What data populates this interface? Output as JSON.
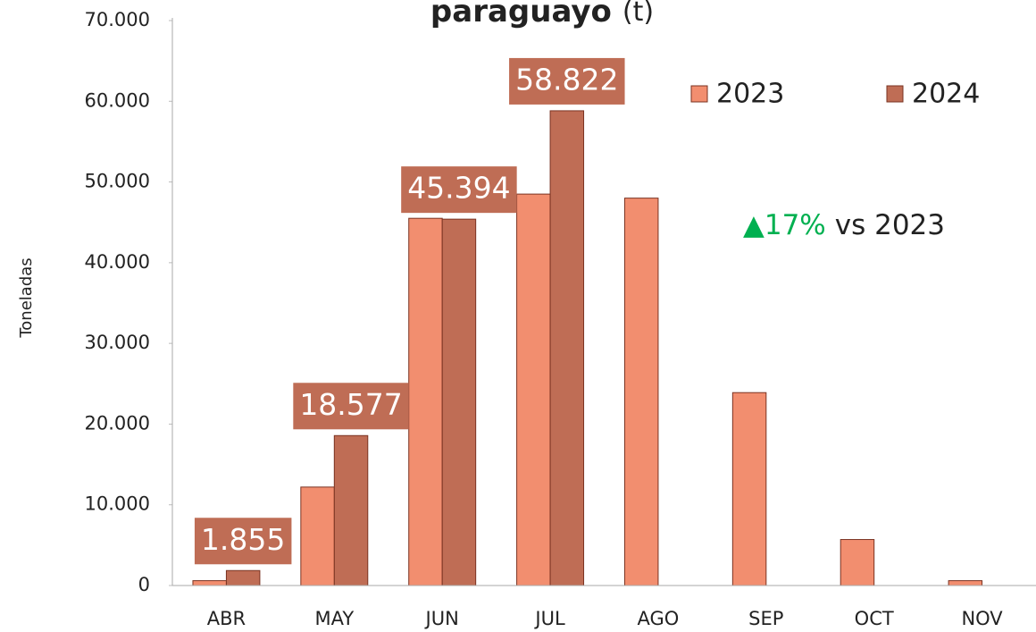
{
  "chart_data": {
    "type": "bar",
    "title": "paraguayo",
    "title_unit": "(t)",
    "ylabel": "Toneladas",
    "categories": [
      "ABR",
      "MAY",
      "JUN",
      "JUL",
      "AGO",
      "SEP",
      "OCT",
      "NOV"
    ],
    "series": [
      {
        "name": "2023",
        "color": "#f28e6f",
        "values": [
          600,
          12200,
          45500,
          48500,
          48000,
          23900,
          5700,
          600
        ]
      },
      {
        "name": "2024",
        "color": "#bf6d55",
        "values": [
          1855,
          18577,
          45394,
          58822,
          null,
          null,
          null,
          null
        ],
        "value_labels": [
          "1.855",
          "18.577",
          "45.394",
          "58.822",
          null,
          null,
          null,
          null
        ]
      }
    ],
    "ylim": [
      0,
      70000
    ],
    "yticks": [
      0,
      {
        "value": 10000,
        "label": "10.000"
      },
      {
        "value": 20000,
        "label": "20.000"
      },
      {
        "value": 30000,
        "label": "30.000"
      },
      {
        "value": 40000,
        "label": "40.000"
      },
      {
        "value": 50000,
        "label": "50.000"
      },
      {
        "value": 60000,
        "label": "60.000"
      },
      {
        "value": 70000,
        "label": "70.000"
      }
    ],
    "annotation": {
      "change": "▲17%",
      "text": "vs 2023"
    },
    "legend": "top-right"
  }
}
